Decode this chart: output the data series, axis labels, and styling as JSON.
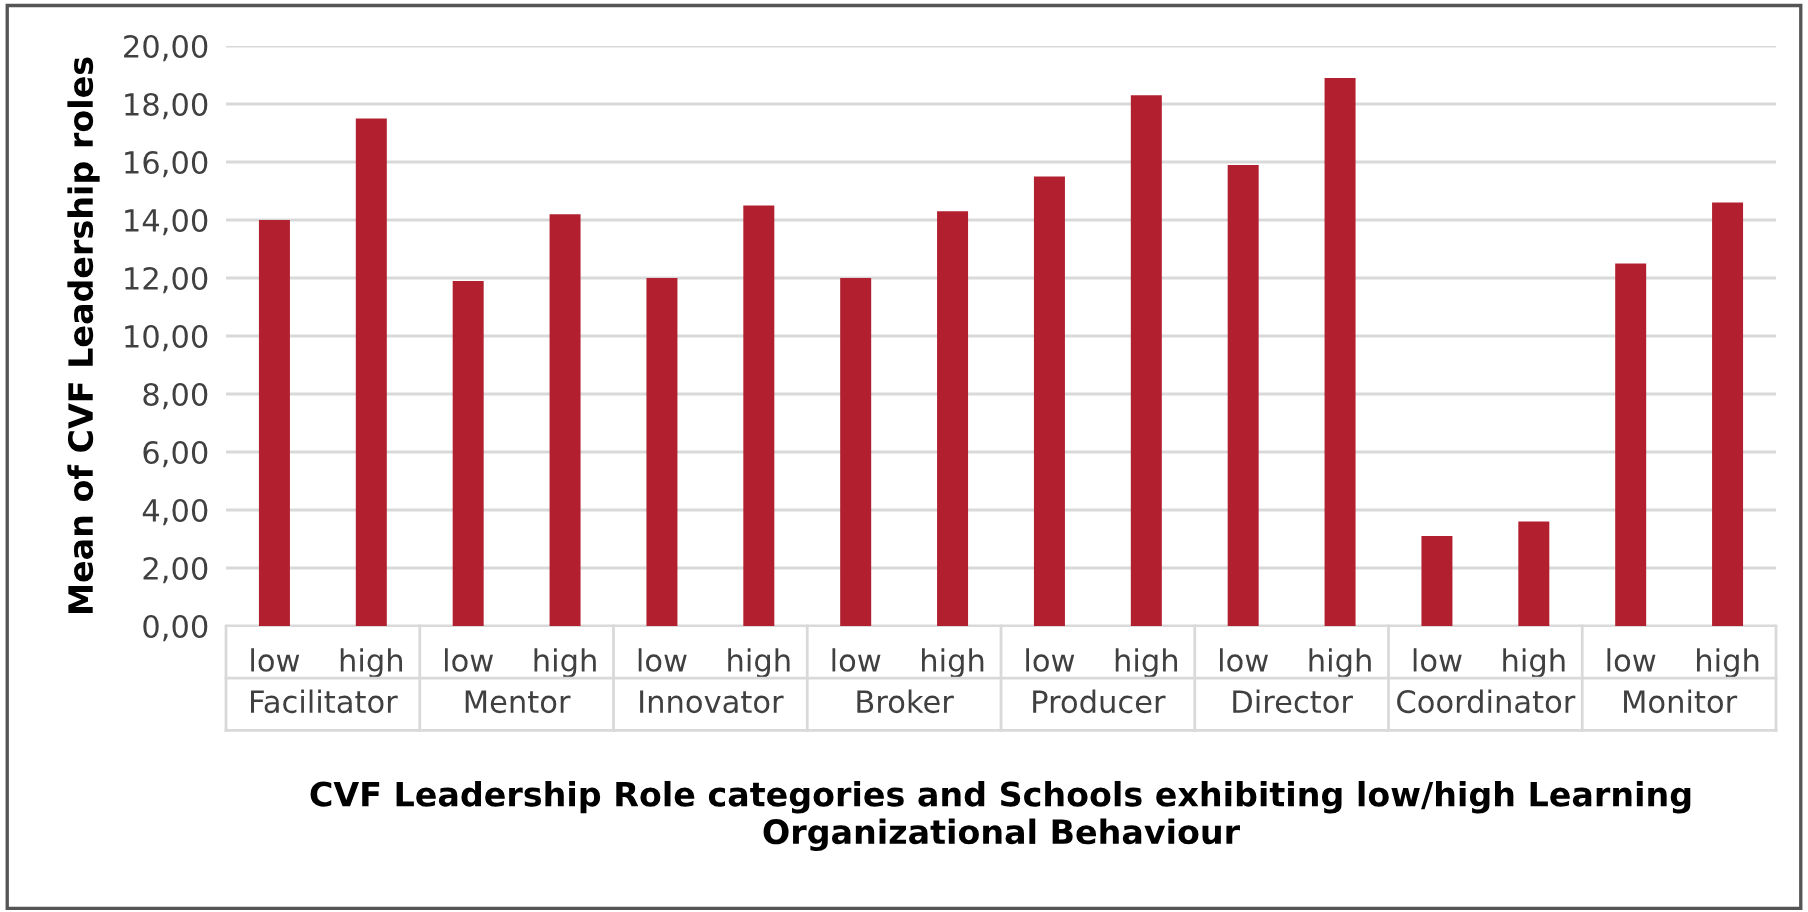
{
  "chart_data": {
    "type": "bar",
    "ylabel": "Mean of CVF Leadership roles",
    "xlabel": "CVF Leadership Role categories and Schools exhibiting low/high Learning Organizational Behaviour",
    "categories": [
      "low",
      "high",
      "low",
      "high",
      "low",
      "high",
      "low",
      "high",
      "low",
      "high",
      "low",
      "high",
      "low",
      "high",
      "low",
      "high"
    ],
    "values": [
      14.0,
      17.5,
      11.9,
      14.2,
      12.0,
      14.5,
      12.0,
      14.3,
      15.5,
      18.3,
      15.9,
      18.9,
      3.1,
      3.6,
      12.5,
      14.6
    ],
    "color": "#b22030",
    "annotations": [
      "Facilitator",
      "Mentor",
      "Innovator",
      "Broker",
      "Producer",
      "Director",
      "Coordinator",
      "Monitor"
    ],
    "ylim": [
      0,
      20
    ],
    "yticks": [
      {
        "value": 0,
        "label": "0,00"
      },
      {
        "value": 2,
        "label": "2,00"
      },
      {
        "value": 4,
        "label": "4,00"
      },
      {
        "value": 6,
        "label": "6,00"
      },
      {
        "value": 8,
        "label": "8,00"
      },
      {
        "value": 10,
        "label": "10,00"
      },
      {
        "value": 12,
        "label": "12,00"
      },
      {
        "value": 14,
        "label": "14,00"
      },
      {
        "value": 16,
        "label": "16,00"
      },
      {
        "value": 18,
        "label": "18,00"
      },
      {
        "value": 20,
        "label": "20,00"
      }
    ],
    "grid": "y"
  }
}
